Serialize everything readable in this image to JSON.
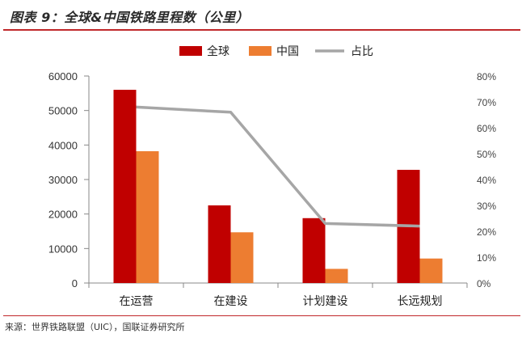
{
  "title": "图表 9：全球&中国铁路里程数（公里）",
  "source": "来源：世界铁路联盟（UIC），国联证券研究所",
  "chart_data": {
    "type": "bar",
    "categories": [
      "在运营",
      "在建设",
      "计划建设",
      "长远规划"
    ],
    "series": [
      {
        "name": "全球",
        "kind": "bar",
        "axis": "left",
        "color": "#c00000",
        "values": [
          56000,
          22500,
          18800,
          32800
        ]
      },
      {
        "name": "中国",
        "kind": "bar",
        "axis": "left",
        "color": "#ed7d31",
        "values": [
          38200,
          14700,
          4100,
          7100
        ]
      },
      {
        "name": "占比",
        "kind": "line",
        "axis": "right",
        "color": "#a6a6a6",
        "values": [
          0.68,
          0.66,
          0.23,
          0.22
        ]
      }
    ],
    "y_left": {
      "ylim": [
        0,
        60000
      ],
      "ticks": [
        "0",
        "10000",
        "20000",
        "30000",
        "40000",
        "50000",
        "60000"
      ]
    },
    "y_right": {
      "ylim": [
        0,
        0.8
      ],
      "ticks": [
        "0%",
        "10%",
        "20%",
        "30%",
        "40%",
        "50%",
        "60%",
        "70%",
        "80%"
      ]
    },
    "legend": {
      "position": "top-center",
      "items": [
        "全球",
        "中国",
        "占比"
      ]
    },
    "grid": false
  }
}
